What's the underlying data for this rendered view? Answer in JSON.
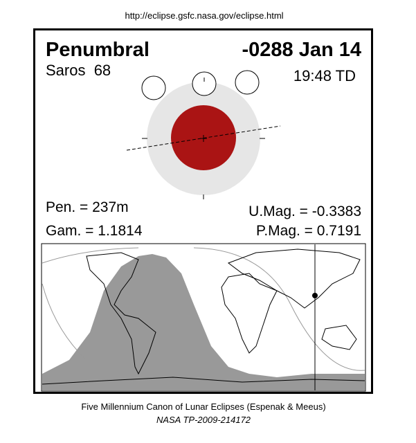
{
  "header": {
    "url": "http://eclipse.gsfc.nasa.gov/eclipse.html"
  },
  "eclipse": {
    "type": "Penumbral",
    "date": "-0288 Jan 14",
    "saros": "Saros  68",
    "time": "19:48 TD",
    "pen": "Pen. = 237m",
    "gam": "Gam. = 1.1814",
    "umag": "U.Mag. = -0.3383",
    "pmag": "P.Mag. = 0.7191"
  },
  "footer": {
    "line1": "Five Millennium Canon of Lunar Eclipses (Espenak & Meeus)",
    "line2": "NASA TP-2009-214172"
  }
}
